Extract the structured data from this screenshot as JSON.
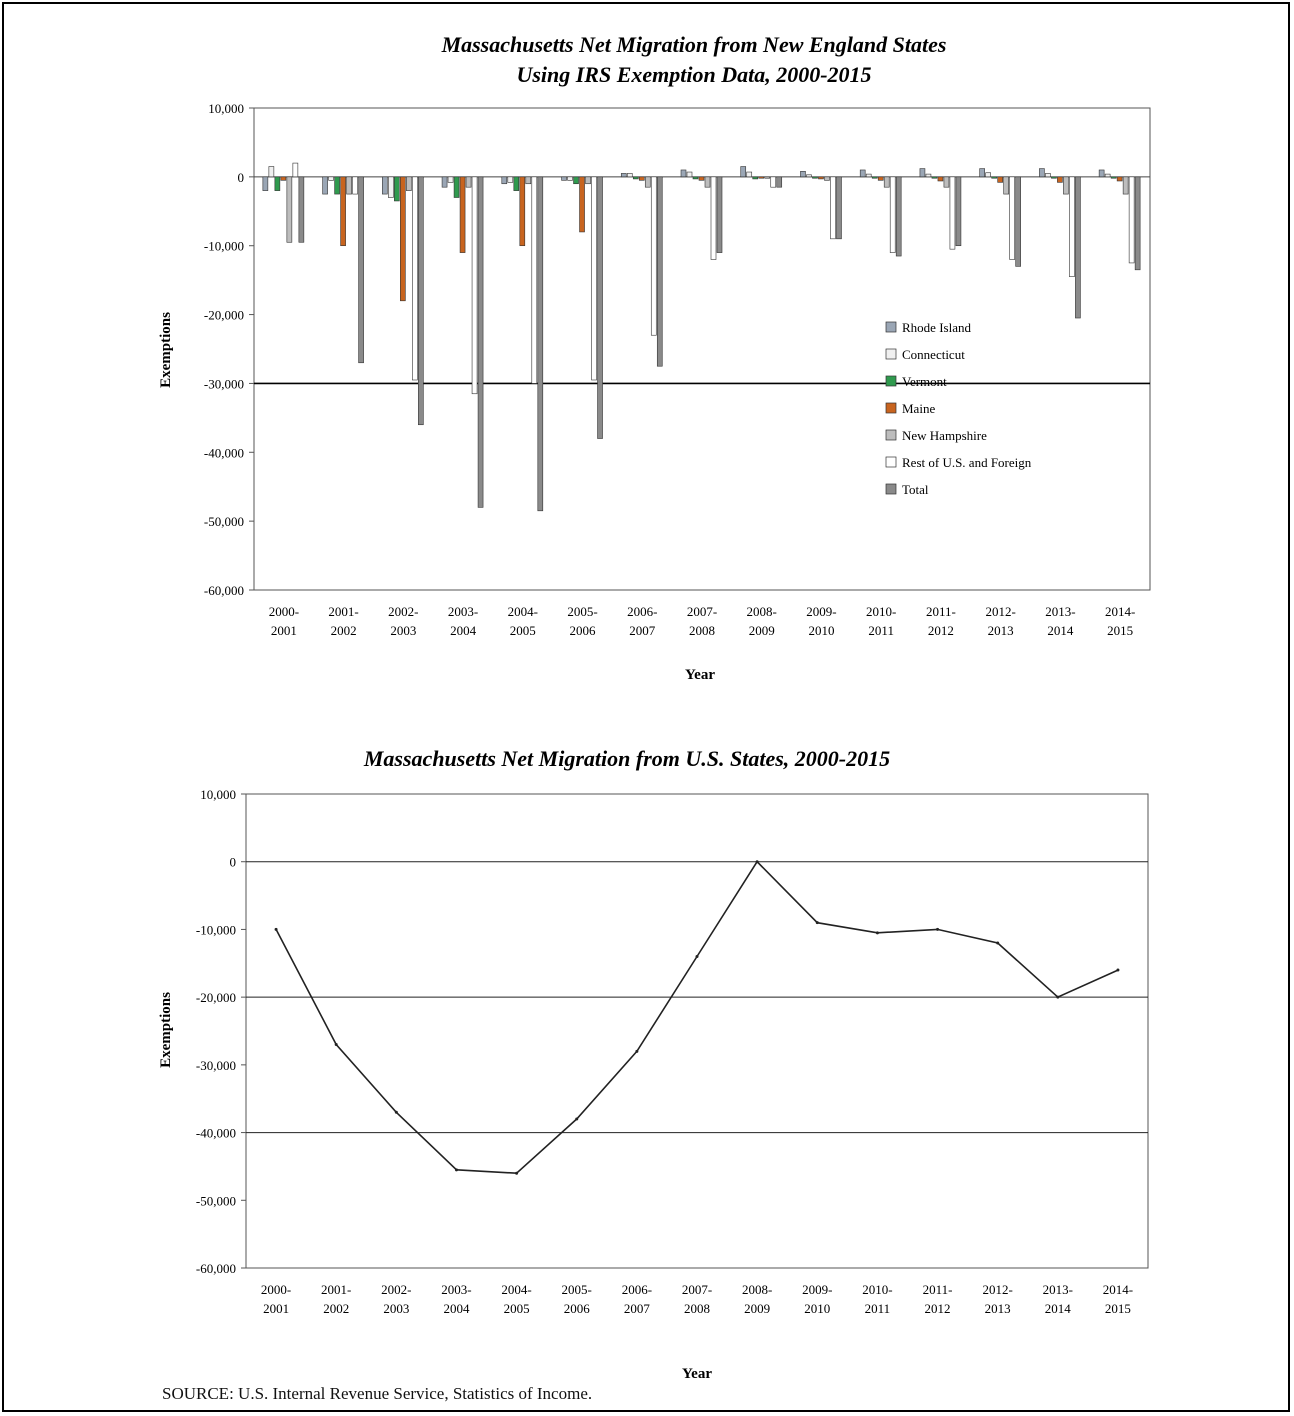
{
  "chart_data": [
    {
      "type": "bar",
      "title": "Massachusetts Net Migration from New England States",
      "subtitle": "Using IRS Exemption Data, 2000-2015",
      "xlabel": "Year",
      "ylabel": "Exemptions",
      "ylim": [
        -60000,
        10000
      ],
      "yticks": [
        10000,
        0,
        -10000,
        -20000,
        -30000,
        -40000,
        -50000,
        -60000
      ],
      "ytick_labels": [
        "10,000",
        "0",
        "-10,000",
        "-20,000",
        "-30,000",
        "-40,000",
        "-50,000",
        "-60,000"
      ],
      "categories": [
        "2000-2001",
        "2001-2002",
        "2002-2003",
        "2003-2004",
        "2004-2005",
        "2005-2006",
        "2006-2007",
        "2007-2008",
        "2008-2009",
        "2009-2010",
        "2010-2011",
        "2011-2012",
        "2012-2013",
        "2013-2014",
        "2014-2015"
      ],
      "legend_position": "right",
      "grid": false,
      "series": [
        {
          "name": "Rhode Island",
          "color": "#9aa6b5",
          "values": [
            -2000,
            -2500,
            -2500,
            -1500,
            -1000,
            -500,
            500,
            1000,
            1500,
            800,
            1000,
            1200,
            1200,
            1200,
            1000
          ]
        },
        {
          "name": "Connecticut",
          "color": "#f0f0f0",
          "values": [
            1500,
            -500,
            -3000,
            -800,
            -800,
            -500,
            500,
            700,
            700,
            300,
            400,
            400,
            600,
            500,
            400
          ]
        },
        {
          "name": "Vermont",
          "color": "#2f9a4e",
          "values": [
            -2000,
            -2500,
            -3500,
            -3000,
            -2000,
            -1000,
            -300,
            -300,
            -300,
            -200,
            -200,
            -200,
            -200,
            -200,
            -200
          ]
        },
        {
          "name": "Maine",
          "color": "#c8641f",
          "values": [
            -500,
            -10000,
            -18000,
            -11000,
            -10000,
            -8000,
            -500,
            -500,
            -200,
            -300,
            -500,
            -600,
            -800,
            -800,
            -600
          ]
        },
        {
          "name": "New Hampshire",
          "color": "#bdbdbd",
          "values": [
            -9500,
            -2500,
            -2000,
            -1500,
            -1000,
            -1000,
            -1500,
            -1500,
            -200,
            -500,
            -1500,
            -1500,
            -2500,
            -2500,
            -2500
          ]
        },
        {
          "name": "Rest of U.S. and Foreign",
          "color": "#ffffff",
          "values": [
            2000,
            -2500,
            -29500,
            -31500,
            -30000,
            -29500,
            -23000,
            -12000,
            -1500,
            -9000,
            -11000,
            -10500,
            -12000,
            -14500,
            -12500
          ]
        },
        {
          "name": "Total",
          "color": "#8a8a8a",
          "values": [
            -9500,
            -27000,
            -36000,
            -48000,
            -48500,
            -38000,
            -27500,
            -11000,
            -1500,
            -9000,
            -11500,
            -10000,
            -13000,
            -20500,
            -13500
          ]
        }
      ]
    },
    {
      "type": "line",
      "title": "Massachusetts Net Migration from U.S. States, 2000-2015",
      "xlabel": "Year",
      "ylabel": "Exemptions",
      "ylim": [
        -60000,
        10000
      ],
      "yticks": [
        10000,
        0,
        -10000,
        -20000,
        -30000,
        -40000,
        -50000,
        -60000
      ],
      "ytick_labels": [
        "10,000",
        "0",
        "-10,000",
        "-20,000",
        "-30,000",
        "-40,000",
        "-50,000",
        "-60,000"
      ],
      "categories": [
        "2000-2001",
        "2001-2002",
        "2002-2003",
        "2003-2004",
        "2004-2005",
        "2005-2006",
        "2006-2007",
        "2007-2008",
        "2008-2009",
        "2009-2010",
        "2010-2011",
        "2011-2012",
        "2012-2013",
        "2013-2014",
        "2014-2015"
      ],
      "grid": true,
      "series": [
        {
          "color": "#222222",
          "values": [
            -10000,
            -27000,
            -37000,
            -45500,
            -46000,
            -38000,
            -28000,
            -14000,
            0,
            -9000,
            -10500,
            -10000,
            -12000,
            -20000,
            -16000
          ]
        }
      ]
    }
  ],
  "source": "SOURCE: U.S. Internal Revenue Service, Statistics of Income."
}
